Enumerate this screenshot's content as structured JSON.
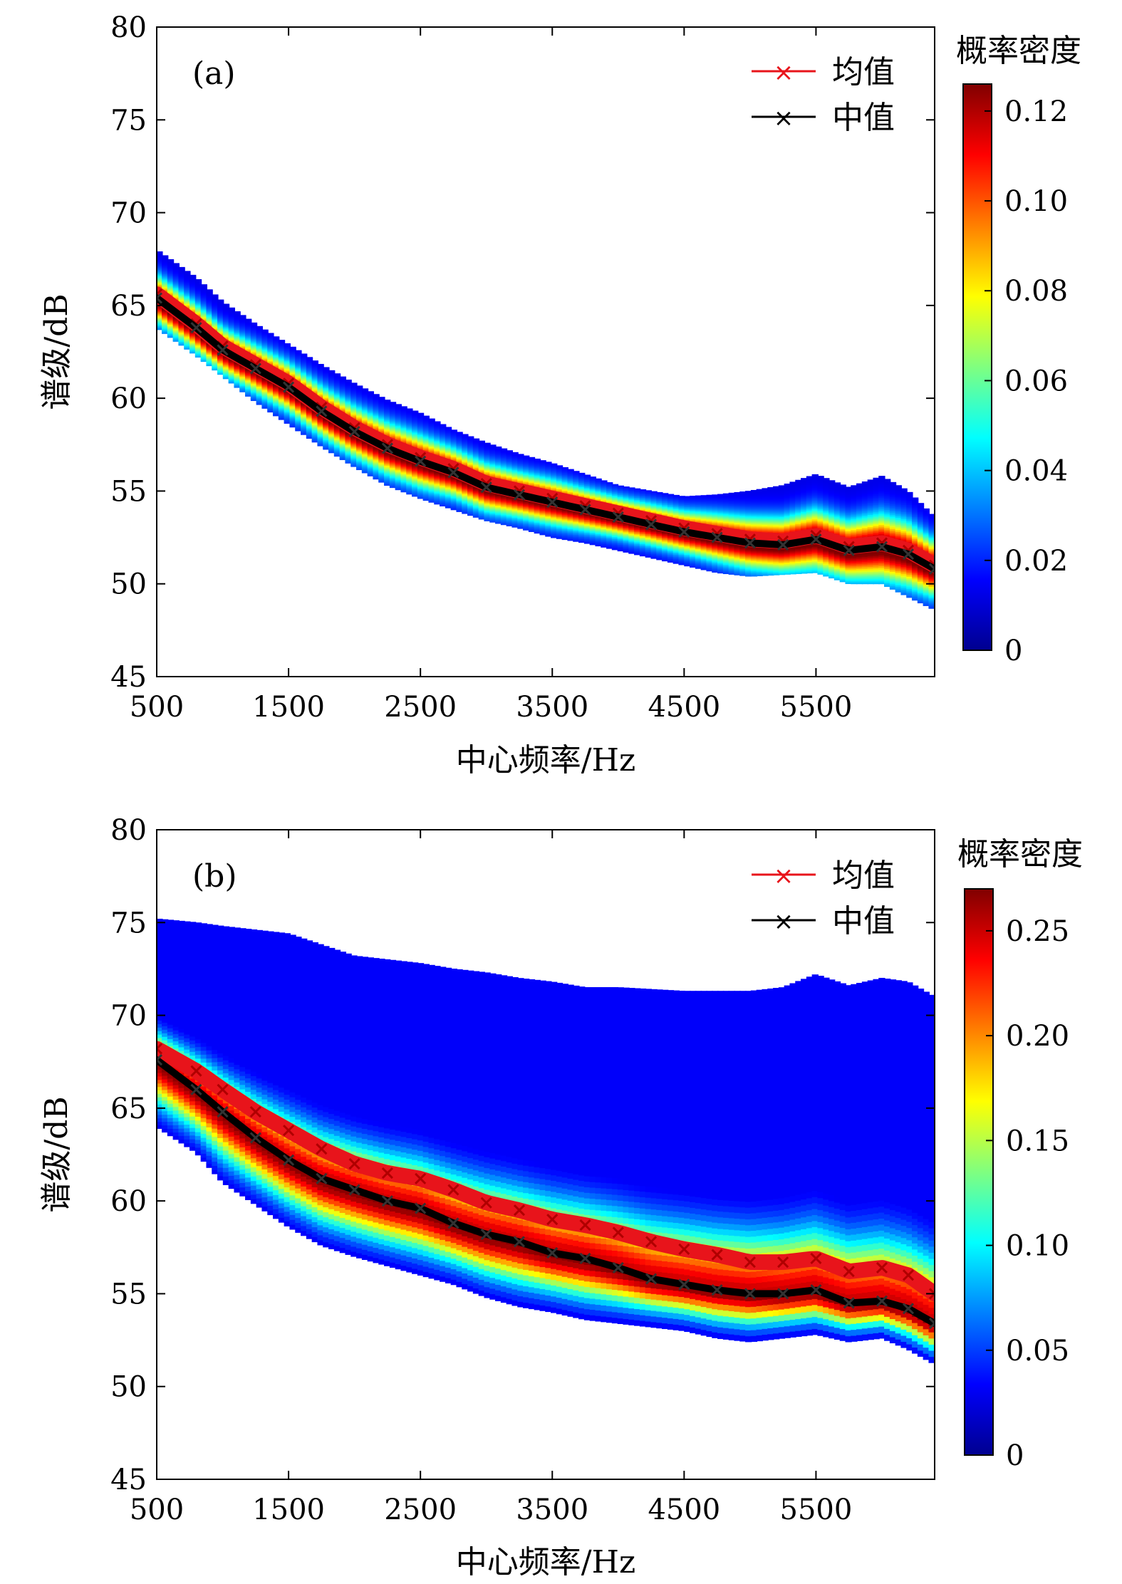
{
  "chart_data": [
    {
      "type": "scatter",
      "panel_label": "(a)",
      "xlabel": "中心频率/Hz",
      "ylabel": "谱级/dB",
      "xlim": [
        500,
        6400
      ],
      "ylim": [
        45,
        80
      ],
      "xticks": [
        500,
        1500,
        2500,
        3500,
        4500,
        5500
      ],
      "yticks": [
        45,
        50,
        55,
        60,
        65,
        70,
        75,
        80
      ],
      "colorbar": {
        "title": "概率密度",
        "min": 0,
        "max": 0.126,
        "ticks": [
          0,
          0.02,
          0.04,
          0.06,
          0.08,
          0.1,
          0.12
        ],
        "tick_labels": [
          "0",
          "0.02",
          "0.04",
          "0.06",
          "0.08",
          "0.10",
          "0.12"
        ]
      },
      "legend": [
        {
          "name": "均值",
          "color": "#e8141b"
        },
        {
          "name": "中值",
          "color": "#000000"
        }
      ],
      "x": [
        500,
        800,
        1000,
        1250,
        1500,
        1750,
        2000,
        2250,
        2500,
        2750,
        3000,
        3250,
        3500,
        3750,
        4000,
        4250,
        4500,
        4750,
        5000,
        5250,
        5500,
        5750,
        6000,
        6200,
        6400
      ],
      "series": [
        {
          "name": "均值",
          "values": [
            65.6,
            64.0,
            62.8,
            61.8,
            60.8,
            59.5,
            58.4,
            57.5,
            56.8,
            56.2,
            55.4,
            55.0,
            54.6,
            54.2,
            53.8,
            53.4,
            53.0,
            52.7,
            52.4,
            52.3,
            52.6,
            52.0,
            52.2,
            51.8,
            51.0
          ]
        },
        {
          "name": "中值",
          "values": [
            65.4,
            63.8,
            62.6,
            61.6,
            60.6,
            59.3,
            58.2,
            57.3,
            56.6,
            56.0,
            55.2,
            54.8,
            54.4,
            54.0,
            53.6,
            53.2,
            52.8,
            52.5,
            52.2,
            52.1,
            52.4,
            51.8,
            52.0,
            51.6,
            50.8
          ]
        }
      ],
      "spread_band": {
        "upper": [
          68.0,
          66.5,
          65.2,
          64.0,
          62.9,
          61.8,
          60.8,
          59.9,
          59.2,
          58.3,
          57.6,
          57.0,
          56.5,
          55.9,
          55.3,
          55.0,
          54.7,
          54.8,
          55.0,
          55.3,
          55.9,
          55.2,
          55.8,
          55.0,
          53.6
        ],
        "lower": [
          63.8,
          62.3,
          61.2,
          59.8,
          58.6,
          57.4,
          56.3,
          55.3,
          54.6,
          54.0,
          53.4,
          53.0,
          52.5,
          52.2,
          51.8,
          51.4,
          51.0,
          50.6,
          50.4,
          50.5,
          50.6,
          50.0,
          50.0,
          49.3,
          48.6
        ]
      }
    },
    {
      "type": "scatter",
      "panel_label": "(b)",
      "xlabel": "中心频率/Hz",
      "ylabel": "谱级/dB",
      "xlim": [
        500,
        6400
      ],
      "ylim": [
        45,
        80
      ],
      "xticks": [
        500,
        1500,
        2500,
        3500,
        4500,
        5500
      ],
      "yticks": [
        45,
        50,
        55,
        60,
        65,
        70,
        75,
        80
      ],
      "colorbar": {
        "title": "概率密度",
        "min": 0,
        "max": 0.27,
        "ticks": [
          0,
          0.05,
          0.1,
          0.15,
          0.2,
          0.25
        ],
        "tick_labels": [
          "0",
          "0.05",
          "0.10",
          "0.15",
          "0.20",
          "0.25"
        ]
      },
      "legend": [
        {
          "name": "均值",
          "color": "#e8141b"
        },
        {
          "name": "中值",
          "color": "#000000"
        }
      ],
      "x": [
        500,
        800,
        1000,
        1250,
        1500,
        1750,
        2000,
        2250,
        2500,
        2750,
        3000,
        3250,
        3500,
        3750,
        4000,
        4250,
        4500,
        4750,
        5000,
        5250,
        5500,
        5750,
        6000,
        6200,
        6400
      ],
      "series": [
        {
          "name": "均值",
          "values": [
            68.2,
            67.0,
            66.0,
            64.8,
            63.8,
            62.8,
            62.0,
            61.5,
            61.2,
            60.6,
            59.9,
            59.5,
            59.0,
            58.7,
            58.3,
            57.8,
            57.4,
            57.1,
            56.7,
            56.7,
            56.9,
            56.2,
            56.4,
            56.0,
            55.0
          ]
        },
        {
          "name": "中值",
          "values": [
            67.6,
            66.0,
            64.8,
            63.4,
            62.2,
            61.2,
            60.6,
            60.0,
            59.6,
            58.8,
            58.2,
            57.8,
            57.2,
            56.9,
            56.4,
            55.8,
            55.5,
            55.2,
            55.0,
            55.0,
            55.2,
            54.5,
            54.6,
            54.2,
            53.4
          ]
        }
      ],
      "spread_band": {
        "upper": [
          75.2,
          75.0,
          74.8,
          74.6,
          74.4,
          73.8,
          73.2,
          73.0,
          72.8,
          72.5,
          72.3,
          72.0,
          71.8,
          71.5,
          71.5,
          71.4,
          71.3,
          71.3,
          71.3,
          71.5,
          72.2,
          71.6,
          72.0,
          71.8,
          71.0
        ],
        "lower": [
          64.0,
          62.6,
          61.0,
          59.8,
          58.6,
          57.6,
          57.0,
          56.5,
          56.0,
          55.5,
          54.8,
          54.3,
          54.0,
          53.6,
          53.4,
          53.2,
          53.0,
          52.6,
          52.4,
          52.6,
          52.8,
          52.4,
          52.6,
          52.0,
          51.2
        ]
      }
    }
  ]
}
